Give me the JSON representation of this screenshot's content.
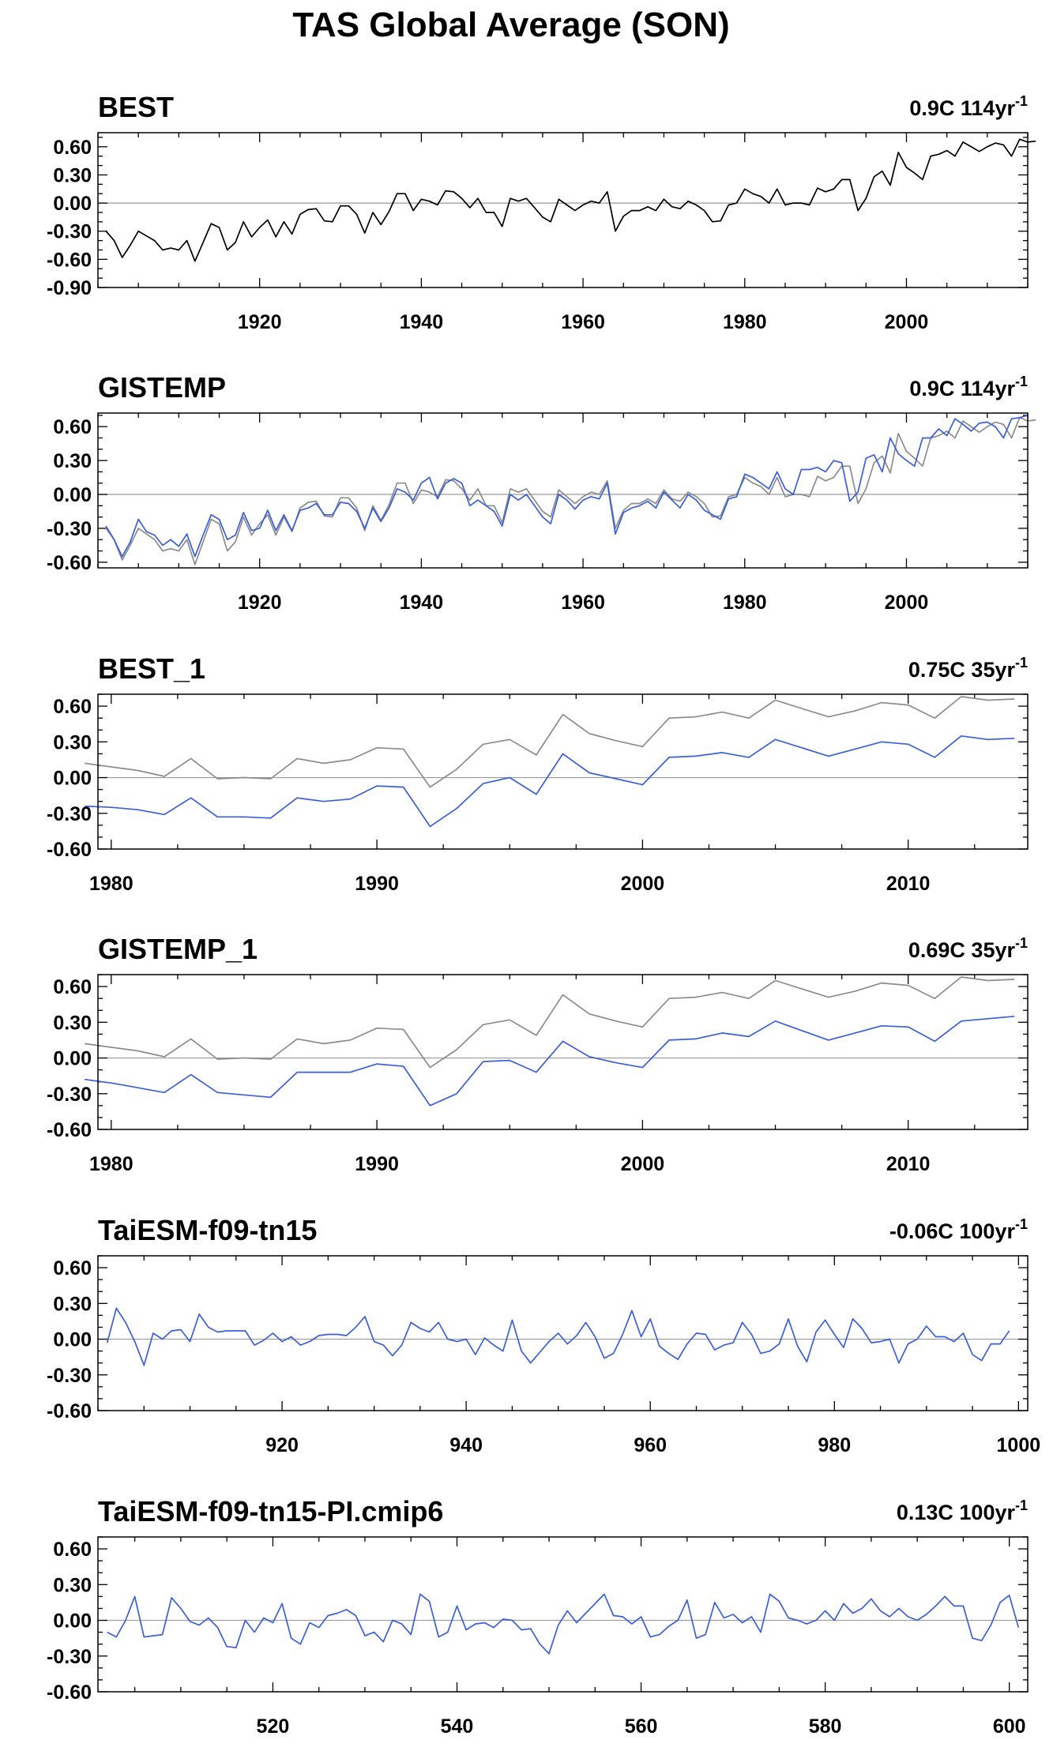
{
  "figure": {
    "title": "TAS Global Average (SON)"
  },
  "colors": {
    "obs": "#000000",
    "ref": "#8c8c8c",
    "model": "#3b5fd9",
    "zero": "#9a9a9a"
  },
  "chart_data": [
    {
      "type": "line",
      "title": "BEST",
      "trend_label": "0.9C 114yr",
      "trend_sup": "-1",
      "xlim": [
        1900,
        2015
      ],
      "ylim": [
        -0.9,
        0.75
      ],
      "xticks": [
        1920,
        1940,
        1960,
        1980,
        2000
      ],
      "yticks": [
        0.6,
        0.3,
        0.0,
        -0.3,
        -0.6,
        -0.9
      ],
      "ytick_labels": [
        "0.60",
        "0.30",
        "0.00",
        "-0.30",
        "-0.60",
        "-0.90"
      ],
      "x_start": 1901,
      "x_step": 1,
      "series": [
        {
          "role": "obs",
          "values": [
            -0.3,
            -0.4,
            -0.58,
            -0.45,
            -0.3,
            -0.35,
            -0.4,
            -0.5,
            -0.48,
            -0.5,
            -0.4,
            -0.62,
            -0.42,
            -0.22,
            -0.26,
            -0.5,
            -0.42,
            -0.2,
            -0.36,
            -0.26,
            -0.18,
            -0.36,
            -0.2,
            -0.33,
            -0.12,
            -0.07,
            -0.06,
            -0.19,
            -0.2,
            -0.03,
            -0.03,
            -0.12,
            -0.32,
            -0.1,
            -0.23,
            -0.09,
            0.1,
            0.1,
            -0.08,
            0.04,
            0.02,
            -0.02,
            0.13,
            0.12,
            0.05,
            -0.05,
            0.05,
            -0.1,
            -0.1,
            -0.25,
            0.05,
            0.02,
            0.05,
            -0.05,
            -0.15,
            -0.2,
            0.04,
            -0.02,
            -0.08,
            -0.02,
            0.02,
            0.0,
            0.12,
            -0.3,
            -0.14,
            -0.08,
            -0.08,
            -0.04,
            -0.08,
            0.04,
            -0.04,
            -0.06,
            0.02,
            -0.02,
            -0.08,
            -0.2,
            -0.19,
            -0.02,
            0.0,
            0.15,
            0.1,
            0.07,
            0.0,
            0.15,
            -0.02,
            0.0,
            0.0,
            -0.02,
            0.16,
            0.12,
            0.15,
            0.25,
            0.25,
            -0.08,
            0.05,
            0.28,
            0.34,
            0.19,
            0.54,
            0.38,
            0.32,
            0.25,
            0.5,
            0.52,
            0.56,
            0.5,
            0.65,
            0.6,
            0.55,
            0.6,
            0.64,
            0.62,
            0.5,
            0.68,
            0.65,
            0.66
          ]
        }
      ]
    },
    {
      "type": "line",
      "title": "GISTEMP",
      "trend_label": "0.9C 114yr",
      "trend_sup": "-1",
      "xlim": [
        1900,
        2015
      ],
      "ylim": [
        -0.65,
        0.72
      ],
      "xticks": [
        1920,
        1940,
        1960,
        1980,
        2000
      ],
      "yticks": [
        0.6,
        0.3,
        0.0,
        -0.3,
        -0.6
      ],
      "ytick_labels": [
        "0.60",
        "0.30",
        "0.00",
        "-0.30",
        "-0.60"
      ],
      "x_start": 1901,
      "x_step": 1,
      "series": [
        {
          "role": "ref",
          "values": [
            -0.3,
            -0.4,
            -0.58,
            -0.45,
            -0.3,
            -0.35,
            -0.4,
            -0.5,
            -0.48,
            -0.5,
            -0.4,
            -0.62,
            -0.42,
            -0.22,
            -0.26,
            -0.5,
            -0.42,
            -0.2,
            -0.36,
            -0.26,
            -0.18,
            -0.36,
            -0.2,
            -0.33,
            -0.12,
            -0.07,
            -0.06,
            -0.19,
            -0.2,
            -0.03,
            -0.03,
            -0.12,
            -0.32,
            -0.1,
            -0.23,
            -0.09,
            0.1,
            0.1,
            -0.08,
            0.04,
            0.02,
            -0.02,
            0.13,
            0.12,
            0.05,
            -0.05,
            0.05,
            -0.1,
            -0.1,
            -0.25,
            0.05,
            0.02,
            0.05,
            -0.05,
            -0.15,
            -0.2,
            0.04,
            -0.02,
            -0.08,
            -0.02,
            0.02,
            0.0,
            0.12,
            -0.3,
            -0.14,
            -0.08,
            -0.08,
            -0.04,
            -0.08,
            0.04,
            -0.04,
            -0.06,
            0.02,
            -0.02,
            -0.08,
            -0.2,
            -0.19,
            -0.02,
            0.0,
            0.15,
            0.1,
            0.07,
            0.0,
            0.15,
            -0.02,
            0.0,
            0.0,
            -0.02,
            0.16,
            0.12,
            0.15,
            0.25,
            0.25,
            -0.08,
            0.05,
            0.28,
            0.34,
            0.19,
            0.54,
            0.38,
            0.32,
            0.25,
            0.5,
            0.52,
            0.56,
            0.5,
            0.65,
            0.6,
            0.55,
            0.6,
            0.64,
            0.62,
            0.5,
            0.68,
            0.65,
            0.66
          ]
        },
        {
          "role": "model",
          "values": [
            -0.28,
            -0.4,
            -0.55,
            -0.42,
            -0.22,
            -0.33,
            -0.36,
            -0.45,
            -0.4,
            -0.46,
            -0.35,
            -0.55,
            -0.36,
            -0.18,
            -0.22,
            -0.4,
            -0.36,
            -0.16,
            -0.32,
            -0.3,
            -0.14,
            -0.32,
            -0.18,
            -0.32,
            -0.14,
            -0.12,
            -0.08,
            -0.18,
            -0.18,
            -0.07,
            -0.08,
            -0.15,
            -0.3,
            -0.12,
            -0.24,
            -0.12,
            0.05,
            0.02,
            -0.05,
            0.1,
            0.15,
            -0.04,
            0.1,
            0.14,
            0.1,
            -0.1,
            -0.05,
            -0.1,
            -0.15,
            -0.28,
            0.0,
            -0.05,
            0.0,
            -0.1,
            -0.2,
            -0.26,
            0.0,
            -0.05,
            -0.13,
            -0.05,
            -0.02,
            -0.04,
            0.1,
            -0.35,
            -0.16,
            -0.12,
            -0.1,
            -0.06,
            -0.12,
            0.02,
            -0.05,
            -0.12,
            0.0,
            -0.05,
            -0.14,
            -0.18,
            -0.22,
            -0.04,
            -0.02,
            0.18,
            0.15,
            0.1,
            0.05,
            0.2,
            0.05,
            0.0,
            0.22,
            0.22,
            0.24,
            0.2,
            0.3,
            0.28,
            -0.06,
            0.02,
            0.32,
            0.35,
            0.2,
            0.5,
            0.36,
            0.3,
            0.25,
            0.5,
            0.5,
            0.58,
            0.52,
            0.67,
            0.62,
            0.56,
            0.63,
            0.64,
            0.6,
            0.5,
            0.67,
            0.68,
            0.7
          ]
        }
      ]
    },
    {
      "type": "line",
      "title": "BEST_1",
      "trend_label": "0.75C 35yr",
      "trend_sup": "-1",
      "xlim": [
        1979.5,
        2014.5
      ],
      "ylim": [
        -0.6,
        0.7
      ],
      "xticks": [
        1980,
        1990,
        2000,
        2010
      ],
      "yticks": [
        0.6,
        0.3,
        0.0,
        -0.3,
        -0.6
      ],
      "ytick_labels": [
        "0.60",
        "0.30",
        "0.00",
        "-0.30",
        "-0.60"
      ],
      "x_start": 1979,
      "x_step": 1,
      "series": [
        {
          "role": "ref",
          "values": [
            0.12,
            0.09,
            0.06,
            0.01,
            0.16,
            -0.01,
            0.0,
            -0.01,
            0.16,
            0.12,
            0.15,
            0.25,
            0.24,
            -0.08,
            0.07,
            0.28,
            0.32,
            0.19,
            0.53,
            0.37,
            0.31,
            0.26,
            0.5,
            0.51,
            0.55,
            0.5,
            0.65,
            0.58,
            0.51,
            0.56,
            0.63,
            0.61,
            0.5,
            0.68,
            0.65,
            0.66
          ]
        },
        {
          "role": "model",
          "values": [
            -0.24,
            -0.25,
            -0.27,
            -0.31,
            -0.17,
            -0.33,
            -0.33,
            -0.34,
            -0.17,
            -0.2,
            -0.18,
            -0.07,
            -0.08,
            -0.41,
            -0.26,
            -0.05,
            0.0,
            -0.14,
            0.2,
            0.04,
            -0.01,
            -0.06,
            0.17,
            0.18,
            0.21,
            0.17,
            0.32,
            0.25,
            0.18,
            0.24,
            0.3,
            0.28,
            0.17,
            0.35,
            0.32,
            0.33
          ]
        }
      ]
    },
    {
      "type": "line",
      "title": "GISTEMP_1",
      "trend_label": "0.69C 35yr",
      "trend_sup": "-1",
      "xlim": [
        1979.5,
        2014.5
      ],
      "ylim": [
        -0.6,
        0.7
      ],
      "xticks": [
        1980,
        1990,
        2000,
        2010
      ],
      "yticks": [
        0.6,
        0.3,
        0.0,
        -0.3,
        -0.6
      ],
      "ytick_labels": [
        "0.60",
        "0.30",
        "0.00",
        "-0.30",
        "-0.60"
      ],
      "x_start": 1979,
      "x_step": 1,
      "series": [
        {
          "role": "ref",
          "values": [
            0.12,
            0.09,
            0.06,
            0.01,
            0.16,
            -0.01,
            0.0,
            -0.01,
            0.16,
            0.12,
            0.15,
            0.25,
            0.24,
            -0.08,
            0.07,
            0.28,
            0.32,
            0.19,
            0.53,
            0.37,
            0.31,
            0.26,
            0.5,
            0.51,
            0.55,
            0.5,
            0.65,
            0.58,
            0.51,
            0.56,
            0.63,
            0.61,
            0.5,
            0.68,
            0.65,
            0.66
          ]
        },
        {
          "role": "model",
          "values": [
            -0.18,
            -0.21,
            -0.25,
            -0.29,
            -0.14,
            -0.29,
            -0.31,
            -0.33,
            -0.12,
            -0.12,
            -0.12,
            -0.05,
            -0.07,
            -0.4,
            -0.3,
            -0.03,
            -0.02,
            -0.12,
            0.14,
            0.01,
            -0.04,
            -0.08,
            0.15,
            0.16,
            0.21,
            0.18,
            0.31,
            0.23,
            0.15,
            0.21,
            0.27,
            0.26,
            0.14,
            0.31,
            0.33,
            0.35
          ]
        }
      ]
    },
    {
      "type": "line",
      "title": "TaiESM-f09-tn15",
      "trend_label": "-0.06C 100yr",
      "trend_sup": "-1",
      "xlim": [
        900,
        1001
      ],
      "ylim": [
        -0.6,
        0.7
      ],
      "xticks": [
        920,
        940,
        960,
        980,
        1000
      ],
      "yticks": [
        0.6,
        0.3,
        0.0,
        -0.3,
        -0.6
      ],
      "ytick_labels": [
        "0.60",
        "0.30",
        "0.00",
        "-0.30",
        "-0.60"
      ],
      "x_start": 901,
      "x_step": 1,
      "series": [
        {
          "role": "model",
          "values": [
            -0.03,
            0.26,
            0.14,
            -0.02,
            -0.22,
            0.05,
            0.0,
            0.07,
            0.08,
            -0.02,
            0.21,
            0.1,
            0.06,
            0.07,
            0.07,
            0.07,
            -0.05,
            -0.01,
            0.05,
            -0.02,
            0.02,
            -0.05,
            -0.02,
            0.03,
            0.04,
            0.04,
            0.03,
            0.1,
            0.19,
            -0.02,
            -0.05,
            -0.14,
            -0.05,
            0.14,
            0.09,
            0.06,
            0.14,
            0.0,
            -0.02,
            0.0,
            -0.13,
            0.01,
            -0.05,
            -0.1,
            0.16,
            -0.1,
            -0.2,
            -0.11,
            -0.02,
            0.05,
            -0.04,
            0.03,
            0.14,
            0.02,
            -0.16,
            -0.12,
            0.04,
            0.24,
            0.02,
            0.17,
            -0.06,
            -0.12,
            -0.17,
            -0.04,
            0.05,
            0.04,
            -0.09,
            -0.05,
            -0.03,
            0.14,
            0.04,
            -0.12,
            -0.1,
            -0.04,
            0.17,
            -0.06,
            -0.19,
            0.06,
            0.16,
            0.04,
            -0.07,
            0.17,
            0.09,
            -0.03,
            -0.02,
            0.0,
            -0.2,
            -0.04,
            0.0,
            0.11,
            0.02,
            0.02,
            -0.02,
            0.05,
            -0.13,
            -0.18,
            -0.04,
            -0.04,
            0.07
          ]
        }
      ]
    },
    {
      "type": "line",
      "title": "TaiESM-f09-tn15-PI.cmip6",
      "trend_label": "0.13C 100yr",
      "trend_sup": "-1",
      "xlim": [
        501,
        602
      ],
      "ylim": [
        -0.6,
        0.7
      ],
      "xticks": [
        520,
        540,
        560,
        580,
        600
      ],
      "yticks": [
        0.6,
        0.3,
        0.0,
        -0.3,
        -0.6
      ],
      "ytick_labels": [
        "0.60",
        "0.30",
        "0.00",
        "-0.30",
        "-0.60"
      ],
      "x_start": 502,
      "x_step": 1,
      "series": [
        {
          "role": "model",
          "values": [
            -0.1,
            -0.14,
            0.0,
            0.2,
            -0.14,
            -0.13,
            -0.12,
            0.19,
            0.1,
            -0.01,
            -0.04,
            0.02,
            -0.06,
            -0.22,
            -0.23,
            0.0,
            -0.1,
            0.02,
            -0.02,
            0.14,
            -0.15,
            -0.2,
            -0.02,
            -0.06,
            0.04,
            0.06,
            0.09,
            0.04,
            -0.13,
            -0.1,
            -0.18,
            0.0,
            -0.03,
            -0.12,
            0.22,
            0.16,
            -0.14,
            -0.1,
            0.12,
            -0.08,
            -0.03,
            -0.02,
            -0.06,
            0.01,
            0.0,
            -0.08,
            -0.07,
            -0.2,
            -0.28,
            -0.04,
            0.08,
            -0.02,
            0.06,
            0.14,
            0.22,
            0.04,
            0.03,
            -0.03,
            0.03,
            -0.14,
            -0.12,
            -0.05,
            0.0,
            0.17,
            -0.15,
            -0.12,
            0.15,
            0.02,
            0.05,
            -0.02,
            0.03,
            -0.1,
            0.22,
            0.16,
            0.02,
            0.0,
            -0.03,
            0.0,
            0.08,
            0.0,
            0.14,
            0.06,
            0.1,
            0.18,
            0.08,
            0.03,
            0.1,
            0.03,
            0.0,
            0.05,
            0.12,
            0.2,
            0.12,
            0.12,
            -0.15,
            -0.17,
            -0.04,
            0.15,
            0.21,
            -0.06
          ]
        }
      ]
    }
  ]
}
